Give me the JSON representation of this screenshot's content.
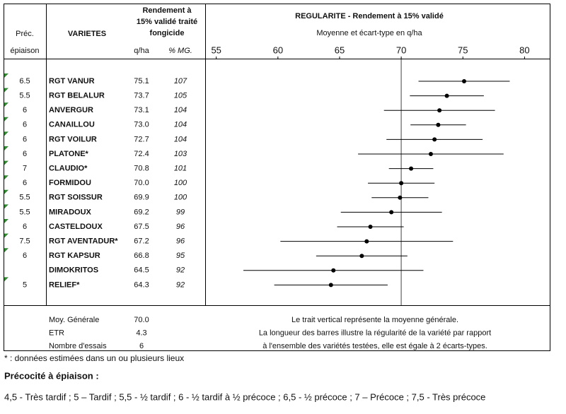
{
  "header": {
    "prec": [
      "Préc.",
      "épiaison"
    ],
    "varietes": "VARIETES",
    "rendement": [
      "Rendement à",
      "15% validé traité",
      "fongicide"
    ],
    "qha": "q/ha",
    "mg": "% MG."
  },
  "table": {
    "rows": [
      [
        "6.5",
        "RGT VANUR",
        "75.1",
        "107"
      ],
      [
        "5.5",
        "RGT BELALUR",
        "73.7",
        "105"
      ],
      [
        "6",
        "ANVERGUR",
        "73.1",
        "104"
      ],
      [
        "6",
        "CANAILLOU",
        "73.0",
        "104"
      ],
      [
        "6",
        "RGT VOILUR",
        "72.7",
        "104"
      ],
      [
        "6",
        "PLATONE*",
        "72.4",
        "103"
      ],
      [
        "7",
        "CLAUDIO*",
        "70.8",
        "101"
      ],
      [
        "6",
        "FORMIDOU",
        "70.0",
        "100"
      ],
      [
        "5.5",
        "RGT SOISSUR",
        "69.9",
        "100"
      ],
      [
        "5.5",
        "MIRADOUX",
        "69.2",
        "99"
      ],
      [
        "6",
        "CASTELDOUX",
        "67.5",
        "96"
      ],
      [
        "7.5",
        "RGT AVENTADUR*",
        "67.2",
        "96"
      ],
      [
        "6",
        "RGT KAPSUR",
        "66.8",
        "95"
      ],
      [
        null,
        "DIMOKRITOS",
        "64.5",
        "92"
      ],
      [
        "5",
        "RELIEF*",
        "64.3",
        "92"
      ]
    ]
  },
  "summary": {
    "rows": [
      [
        "Moy. Générale",
        "70.0"
      ],
      [
        "ETR",
        "4.3"
      ],
      [
        "Nombre d'essais",
        "6"
      ]
    ],
    "notes": [
      "Le trait vertical représente la moyenne générale.",
      "La longueur des barres illustre la régularité de la variété par rapport",
      "à l'ensemble des variétés testées, elle est égale à 2 écarts-types."
    ]
  },
  "footnote": "* : données estimées dans un ou plusieurs lieux",
  "legend": {
    "title": "Précocité à épiaison :",
    "text": "4,5 - Très tardif ; 5 – Tardif ; 5,5 - ½ tardif ; 6 - ½ tardif à ½ précoce ; 6,5 - ½ précoce ; 7 – Précoce ; 7,5 - Très précoce"
  },
  "chart_data": {
    "type": "errorbar",
    "title": "REGULARITE - Rendement à 15% validé",
    "subtitle": "Moyenne et écart-type en q/ha",
    "values": [
      75.1,
      73.7,
      73.1,
      73.0,
      72.7,
      72.4,
      70.8,
      70.0,
      69.9,
      69.2,
      67.5,
      67.2,
      66.8,
      64.5,
      64.3
    ],
    "errors": [
      3.7,
      3.0,
      4.5,
      2.25,
      3.9,
      5.9,
      1.8,
      2.7,
      2.3,
      4.1,
      2.7,
      7.0,
      3.7,
      7.3,
      4.6
    ],
    "reference": 70,
    "xlim": [
      54.1,
      82.1
    ],
    "xticks": [
      55,
      60,
      65,
      70,
      75,
      80
    ],
    "color": "#000000",
    "reference_color": "#808080"
  }
}
